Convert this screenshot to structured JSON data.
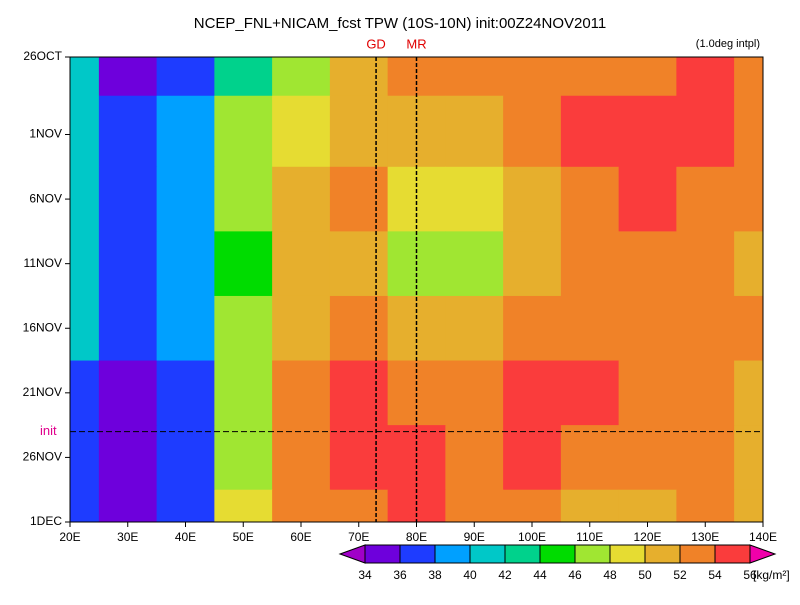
{
  "chart_data": {
    "type": "heatmap",
    "title": "NCEP_FNL+NICAM_fcst TPW (10S-10N) init:00Z24NOV2011",
    "annotation": "(1.0deg intpl)",
    "x": [
      20,
      30,
      40,
      50,
      60,
      70,
      80,
      90,
      100,
      110,
      120,
      130,
      140
    ],
    "y": [
      "2011-10-26",
      "2011-11-01",
      "2011-11-06",
      "2011-11-11",
      "2011-11-16",
      "2011-11-21",
      "2011-11-26",
      "2011-12-01"
    ],
    "values": [
      [
        40,
        35,
        37,
        43,
        46,
        50,
        53,
        53,
        53,
        53,
        52,
        54,
        53
      ],
      [
        41,
        37,
        38,
        47,
        48,
        50,
        51,
        51,
        52,
        54,
        55,
        54,
        53
      ],
      [
        41,
        37,
        39,
        46,
        50,
        52,
        48,
        48,
        50,
        52,
        54,
        53,
        52
      ],
      [
        40,
        36,
        38,
        45,
        50,
        51,
        46,
        47,
        51,
        52,
        53,
        52,
        51
      ],
      [
        41,
        36,
        38,
        46,
        51,
        52,
        51,
        51,
        52,
        53,
        53,
        52,
        52
      ],
      [
        37,
        35,
        37,
        47,
        53,
        54,
        52,
        53,
        55,
        55,
        53,
        52,
        51
      ],
      [
        36,
        35,
        37,
        47,
        52,
        54,
        54,
        53,
        54,
        53,
        52,
        52,
        51
      ],
      [
        37,
        35,
        37,
        48,
        52,
        53,
        54,
        52,
        52,
        51,
        50,
        52,
        51
      ]
    ],
    "xlim": [
      20,
      140
    ],
    "xticks": [
      {
        "value": 20,
        "label": "20E"
      },
      {
        "value": 30,
        "label": "30E"
      },
      {
        "value": 40,
        "label": "40E"
      },
      {
        "value": 50,
        "label": "50E"
      },
      {
        "value": 60,
        "label": "60E"
      },
      {
        "value": 70,
        "label": "70E"
      },
      {
        "value": 80,
        "label": "80E"
      },
      {
        "value": 90,
        "label": "90E"
      },
      {
        "value": 100,
        "label": "100E"
      },
      {
        "value": 110,
        "label": "110E"
      },
      {
        "value": 120,
        "label": "120E"
      },
      {
        "value": 130,
        "label": "130E"
      },
      {
        "value": 140,
        "label": "140E"
      }
    ],
    "ylim": [
      "2011-10-26",
      "2011-12-01"
    ],
    "yticks": [
      {
        "value": "2011-10-26",
        "label": "26OCT"
      },
      {
        "value": "2011-11-01",
        "label": "1NOV"
      },
      {
        "value": "2011-11-06",
        "label": "6NOV"
      },
      {
        "value": "2011-11-11",
        "label": "11NOV"
      },
      {
        "value": "2011-11-16",
        "label": "16NOV"
      },
      {
        "value": "2011-11-21",
        "label": "21NOV"
      },
      {
        "value": "2011-11-26",
        "label": "26NOV"
      },
      {
        "value": "2011-12-01",
        "label": "1DEC"
      }
    ],
    "markers": [
      {
        "label": "GD",
        "x": 73
      },
      {
        "label": "MR",
        "x": 80
      }
    ],
    "init": {
      "label": "init",
      "date": "2011-11-24"
    },
    "colorbar": {
      "levels": [
        34,
        36,
        38,
        40,
        42,
        44,
        46,
        48,
        50,
        52,
        54,
        56
      ],
      "colors": [
        "#a000c8",
        "#6e00dc",
        "#1e3cff",
        "#00a0ff",
        "#00c8c8",
        "#00d28c",
        "#00dc00",
        "#a0e632",
        "#e6dc32",
        "#e6af2d",
        "#f08228",
        "#fa3c3c",
        "#f000aa"
      ],
      "unit": "[kg/m²]"
    }
  }
}
